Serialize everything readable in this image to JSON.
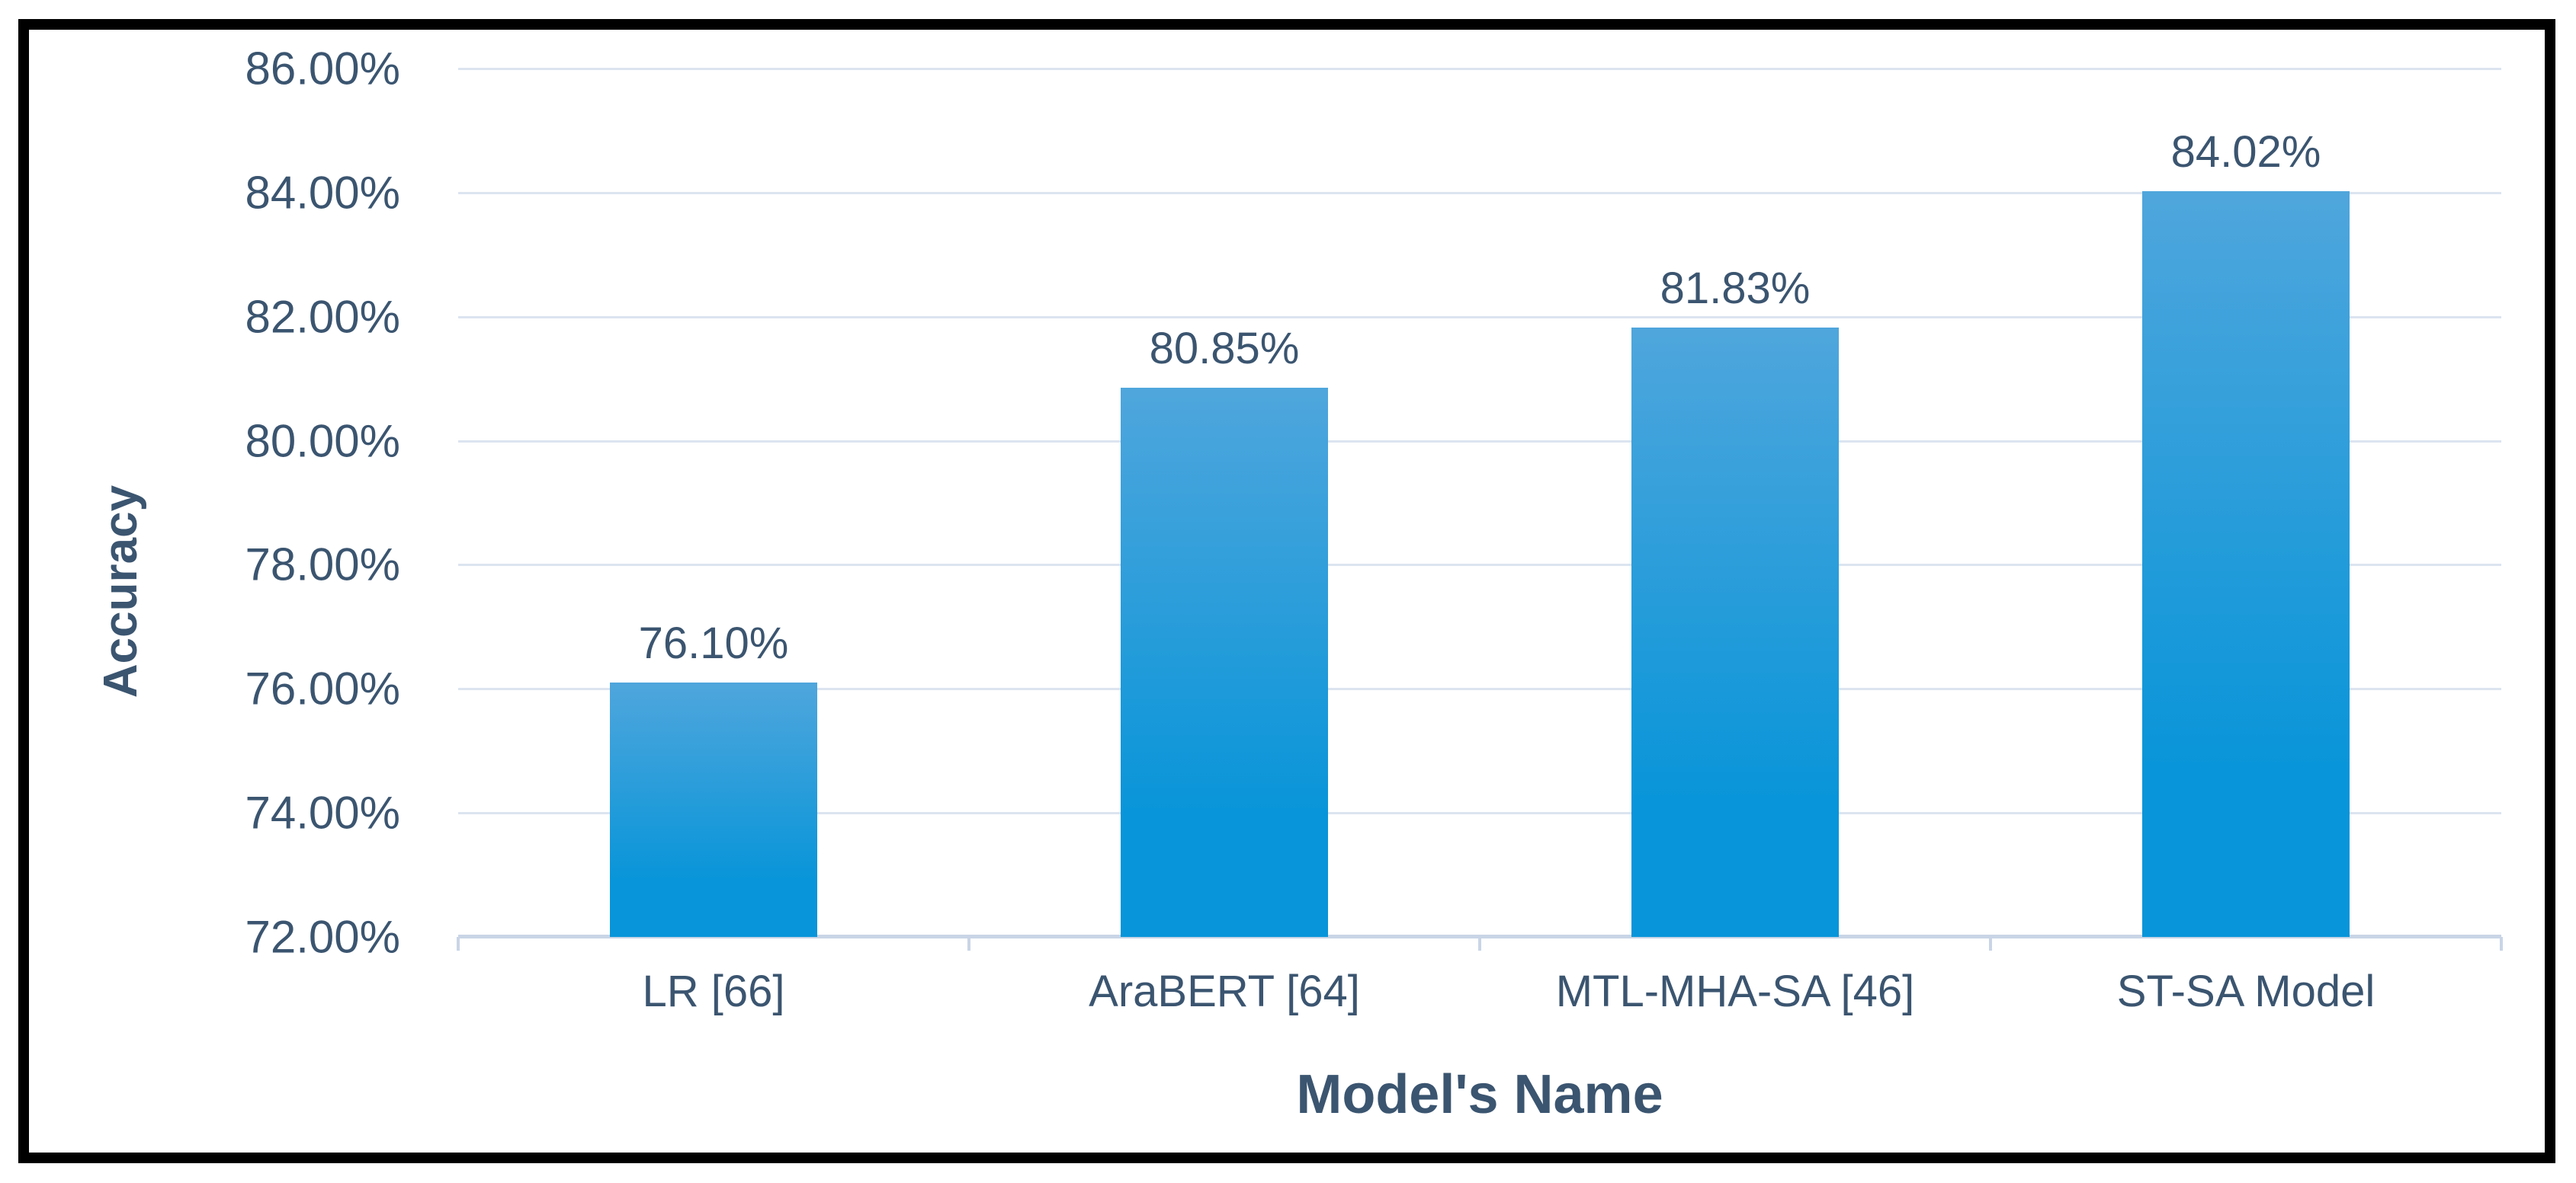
{
  "chart_data": {
    "type": "bar",
    "title": "",
    "xlabel": "Model's Name",
    "ylabel": "Accuracy",
    "categories": [
      "LR [66]",
      "AraBERT [64]",
      "MTL-MHA-SA [46]",
      "ST-SA Model"
    ],
    "values": [
      76.1,
      80.85,
      81.83,
      84.02
    ],
    "data_labels": [
      "76.10%",
      "80.85%",
      "81.83%",
      "84.02%"
    ],
    "ylim": [
      72,
      86
    ],
    "ytick_step": 2,
    "ytick_labels": [
      "72.00%",
      "74.00%",
      "76.00%",
      "78.00%",
      "80.00%",
      "82.00%",
      "84.00%",
      "86.00%"
    ],
    "grid": true,
    "legend": "none",
    "colors": {
      "bar_top": "#4FA6DC",
      "bar_bottom": "#0895D9",
      "text": "#3B5570",
      "gridline": "#DCE4F0",
      "axis_line": "#C9D5E6",
      "frame": "#000000",
      "background": "#FFFFFF"
    }
  }
}
